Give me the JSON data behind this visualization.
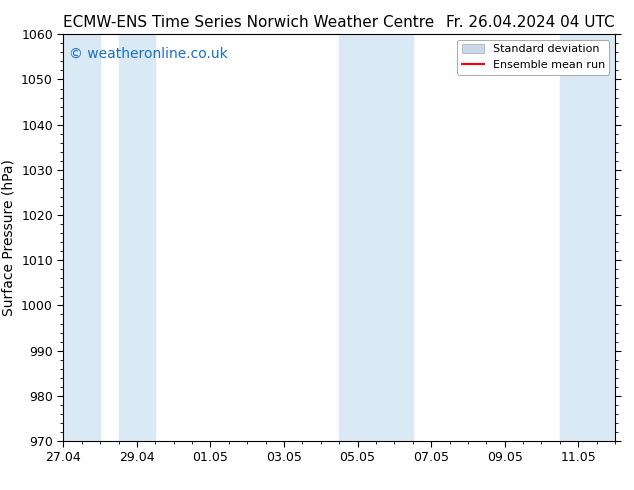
{
  "title_left": "ECMW-ENS Time Series Norwich Weather Centre",
  "title_right": "Fr. 26.04.2024 04 UTC",
  "ylabel": "Surface Pressure (hPa)",
  "ylim": [
    970,
    1060
  ],
  "yticks": [
    970,
    980,
    990,
    1000,
    1010,
    1020,
    1030,
    1040,
    1050,
    1060
  ],
  "xtick_labels": [
    "27.04",
    "29.04",
    "01.05",
    "03.05",
    "05.05",
    "07.05",
    "09.05",
    "11.05"
  ],
  "xtick_positions": [
    0,
    2,
    4,
    6,
    8,
    10,
    12,
    14
  ],
  "xlim": [
    0,
    15
  ],
  "shaded_bands": [
    {
      "x_start": 0.0,
      "x_end": 1.0
    },
    {
      "x_start": 1.5,
      "x_end": 2.5
    },
    {
      "x_start": 7.5,
      "x_end": 9.5
    },
    {
      "x_start": 13.5,
      "x_end": 15.0
    }
  ],
  "band_color": "#daeaf5",
  "watermark_text": "© weatheronline.co.uk",
  "watermark_color": "#1a6ec0",
  "legend_std_label": "Standard deviation",
  "legend_mean_label": "Ensemble mean run",
  "legend_std_color": "#c8d8e8",
  "legend_mean_color": "#ff0000",
  "background_color": "#ffffff",
  "title_fontsize": 11,
  "axis_fontsize": 10,
  "tick_fontsize": 9,
  "watermark_fontsize": 10
}
